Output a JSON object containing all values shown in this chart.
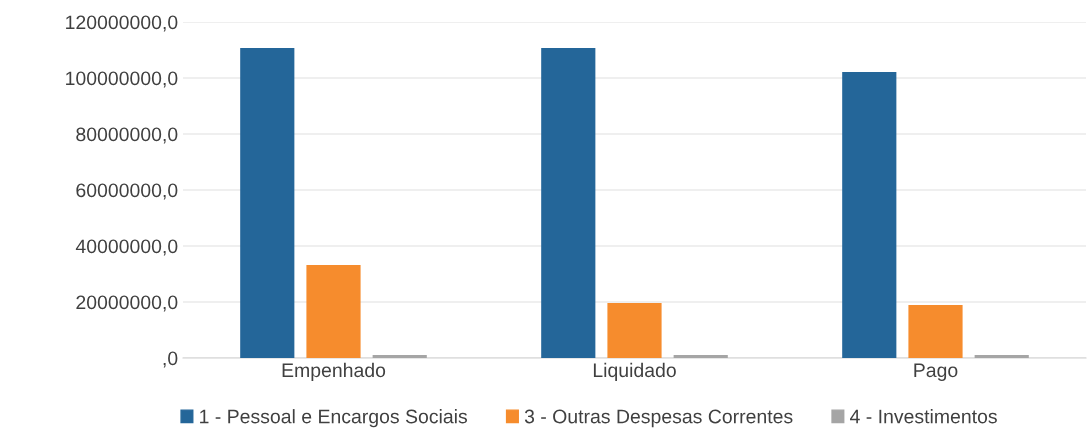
{
  "chart_data": {
    "type": "bar",
    "categories": [
      "Empenhado",
      "Liquidado",
      "Pago"
    ],
    "series": [
      {
        "name": "1 - Pessoal e Encargos Sociais",
        "color": "#246699",
        "values": [
          110700000,
          110700000,
          102100000
        ]
      },
      {
        "name": "3 - Outras Despesas Correntes",
        "color": "#f68c2d",
        "values": [
          33200000,
          19600000,
          18900000
        ]
      },
      {
        "name": "4 - Investimentos",
        "color": "#a5a5a5",
        "values": [
          1100000,
          1100000,
          1100000
        ]
      }
    ],
    "ylim": [
      0,
      120000000
    ],
    "yticks": [
      {
        "value": 0,
        "label": ",0"
      },
      {
        "value": 20000000,
        "label": "20000000,0"
      },
      {
        "value": 40000000,
        "label": "40000000,0"
      },
      {
        "value": 60000000,
        "label": "60000000,0"
      },
      {
        "value": 80000000,
        "label": "80000000,0"
      },
      {
        "value": 100000000,
        "label": "100000000,0"
      },
      {
        "value": 120000000,
        "label": "120000000,0"
      }
    ],
    "grid": "y",
    "legend": "bottom"
  }
}
